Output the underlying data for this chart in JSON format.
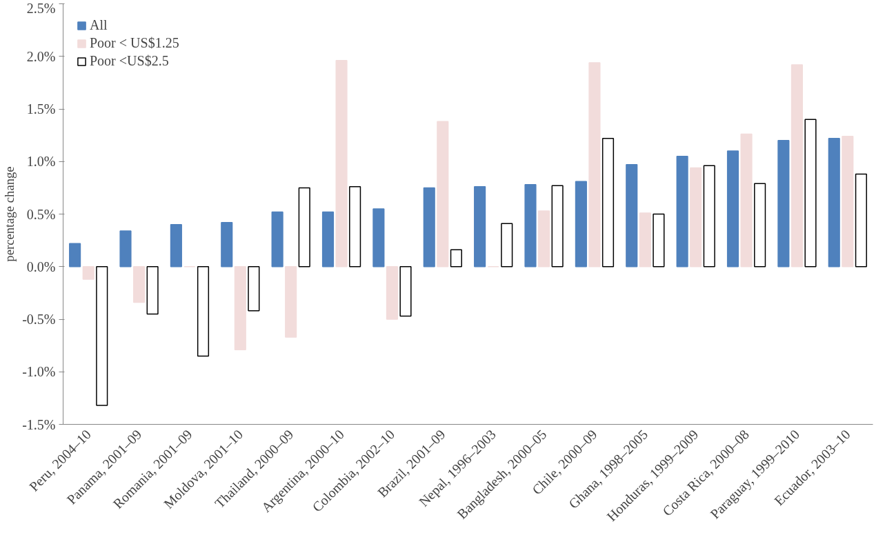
{
  "chart_data": {
    "type": "bar",
    "ylabel": "percentage change",
    "categories": [
      "Peru, 2004–10",
      "Panama, 2001–09",
      "Romania, 2001–09",
      "Moldova, 2001–10",
      "Thailand, 2000–09",
      "Argentina, 2000–10",
      "Colombia, 2002–10",
      "Brazil, 2001–09",
      "Nepal, 1996–2003",
      "Bangladesh, 2000–05",
      "Chile, 2000–09",
      "Ghana, 1998–2005",
      "Honduras, 1999–2009",
      "Costa Rica, 2000–08",
      "Paraguay, 1999–2010",
      "Ecuador, 2003–10"
    ],
    "series": [
      {
        "name": "All",
        "color": "#4f81bd",
        "values": [
          0.22,
          0.34,
          0.4,
          0.42,
          0.52,
          0.52,
          0.55,
          0.75,
          0.76,
          0.78,
          0.81,
          0.97,
          1.05,
          1.1,
          1.2,
          1.22
        ]
      },
      {
        "name": "Poor < US$1.25",
        "color": "#f2dcdb",
        "values": [
          -0.12,
          -0.34,
          0.0,
          -0.79,
          -0.67,
          1.96,
          -0.5,
          1.38,
          0.0,
          0.53,
          1.94,
          0.51,
          0.94,
          1.26,
          1.92,
          1.24
        ]
      },
      {
        "name": "Poor <US$2.5",
        "color": "#ffffff",
        "values": [
          -1.32,
          -0.45,
          -0.85,
          -0.42,
          0.75,
          0.76,
          -0.47,
          0.16,
          0.41,
          0.77,
          1.22,
          0.5,
          0.96,
          0.79,
          1.4,
          0.88
        ]
      }
    ],
    "ylim": [
      -1.5,
      2.5
    ],
    "yticks": [
      {
        "value": -1.5,
        "label": "-1.5%"
      },
      {
        "value": -1.0,
        "label": "-1.0%"
      },
      {
        "value": -0.5,
        "label": "-0.5%"
      },
      {
        "value": 0.0,
        "label": "0.0%"
      },
      {
        "value": 0.5,
        "label": "0.5%"
      },
      {
        "value": 1.0,
        "label": "1.0%"
      },
      {
        "value": 1.5,
        "label": "1.5%"
      },
      {
        "value": 2.0,
        "label": "2.0%"
      },
      {
        "value": 2.5,
        "label": "2.5%"
      }
    ],
    "grid": false,
    "legend": "top left"
  }
}
